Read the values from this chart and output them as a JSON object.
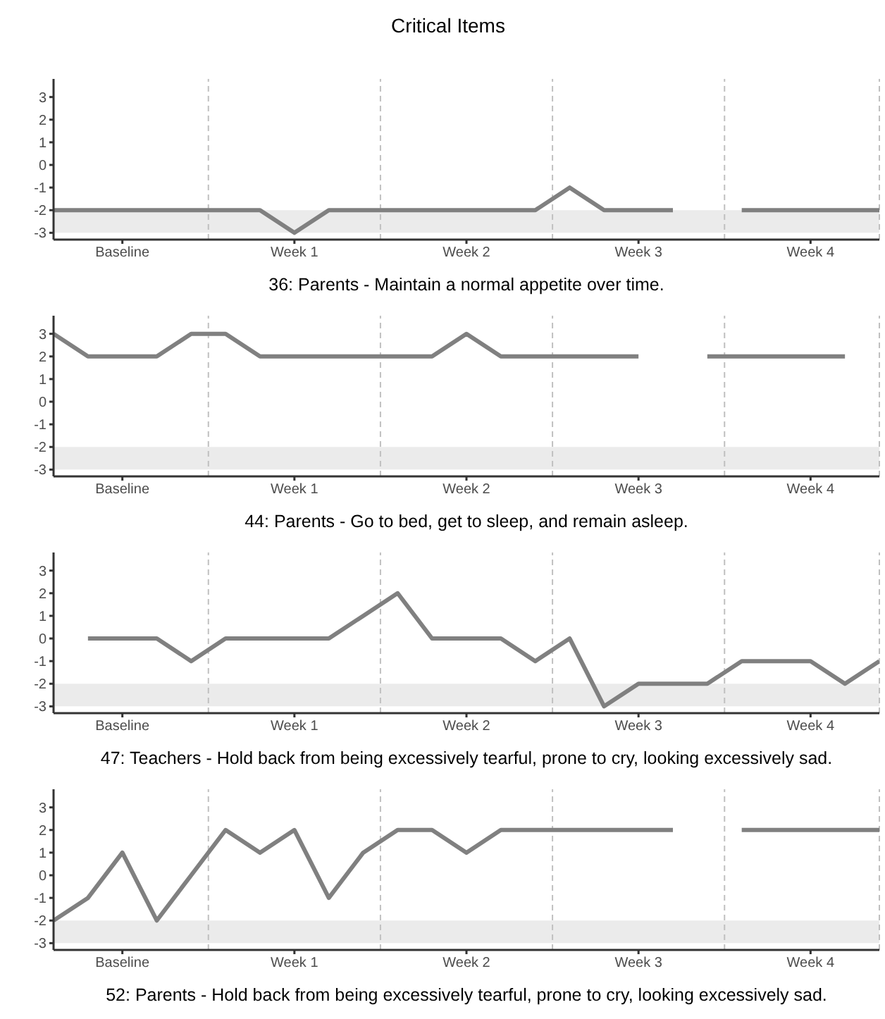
{
  "chart_data": [
    {
      "type": "line",
      "title": "Critical Items",
      "xlabel": "36: Parents - Maintain a normal appetite over time.",
      "categories": [
        null,
        null,
        "Baseline",
        null,
        null,
        null,
        null,
        "Week 1",
        null,
        null,
        null,
        null,
        "Week 2",
        null,
        null,
        null,
        null,
        "Week 3",
        null,
        null,
        null,
        null,
        "Week 4",
        null,
        null
      ],
      "series": [
        {
          "color": "#808080",
          "values": [
            -2,
            -2,
            -2,
            -2,
            -2,
            -2,
            -2,
            -3,
            -2,
            -2,
            -2,
            -2,
            -2,
            -2,
            -2,
            -1,
            -2,
            -2,
            -2,
            null,
            -2,
            -2,
            -2,
            -2,
            -2
          ]
        }
      ],
      "ylim": [
        -3.3,
        3.8
      ],
      "yticks": [
        -3,
        -2,
        -1,
        0,
        1,
        2,
        3
      ],
      "grid": false,
      "legend": false,
      "marker": "none",
      "line_style": "solid",
      "bands": [
        {
          "axis": "y",
          "from": -3,
          "to": -2,
          "color": "#ebebeb"
        }
      ]
    },
    {
      "type": "line",
      "xlabel": "44: Parents - Go to bed, get to sleep, and remain asleep.",
      "categories": [
        null,
        null,
        "Baseline",
        null,
        null,
        null,
        null,
        "Week 1",
        null,
        null,
        null,
        null,
        "Week 2",
        null,
        null,
        null,
        null,
        "Week 3",
        null,
        null,
        null,
        null,
        "Week 4",
        null,
        null
      ],
      "series": [
        {
          "color": "#808080",
          "values": [
            3,
            2,
            2,
            2,
            3,
            3,
            2,
            2,
            2,
            2,
            2,
            2,
            3,
            2,
            2,
            2,
            2,
            2,
            null,
            2,
            2,
            2,
            2,
            2,
            null
          ]
        }
      ],
      "ylim": [
        -3.3,
        3.8
      ],
      "yticks": [
        -3,
        -2,
        -1,
        0,
        1,
        2,
        3
      ],
      "grid": false,
      "legend": false,
      "marker": "none",
      "line_style": "solid",
      "bands": [
        {
          "axis": "y",
          "from": -3,
          "to": -2,
          "color": "#ebebeb"
        }
      ]
    },
    {
      "type": "line",
      "xlabel": "47: Teachers - Hold back from being excessively tearful, prone to cry, looking excessively sad.",
      "categories": [
        null,
        null,
        "Baseline",
        null,
        null,
        null,
        null,
        "Week 1",
        null,
        null,
        null,
        null,
        "Week 2",
        null,
        null,
        null,
        null,
        "Week 3",
        null,
        null,
        null,
        null,
        "Week 4",
        null,
        null
      ],
      "series": [
        {
          "color": "#808080",
          "values": [
            null,
            0,
            0,
            0,
            -1,
            0,
            0,
            0,
            0,
            1,
            2,
            0,
            0,
            0,
            -1,
            0,
            -3,
            -2,
            -2,
            -2,
            -1,
            -1,
            -1,
            -2,
            -1
          ]
        }
      ],
      "ylim": [
        -3.3,
        3.8
      ],
      "yticks": [
        -3,
        -2,
        -1,
        0,
        1,
        2,
        3
      ],
      "grid": false,
      "legend": false,
      "marker": "none",
      "line_style": "solid",
      "bands": [
        {
          "axis": "y",
          "from": -3,
          "to": -2,
          "color": "#ebebeb"
        }
      ]
    },
    {
      "type": "line",
      "xlabel": "52: Parents - Hold back from being excessively tearful, prone to cry, looking excessively sad.",
      "categories": [
        null,
        null,
        "Baseline",
        null,
        null,
        null,
        null,
        "Week 1",
        null,
        null,
        null,
        null,
        "Week 2",
        null,
        null,
        null,
        null,
        "Week 3",
        null,
        null,
        null,
        null,
        "Week 4",
        null,
        null
      ],
      "series": [
        {
          "color": "#808080",
          "values": [
            -2,
            -1,
            1,
            -2,
            0,
            2,
            1,
            2,
            -1,
            1,
            2,
            2,
            1,
            2,
            2,
            2,
            2,
            2,
            2,
            null,
            2,
            2,
            2,
            2,
            2
          ]
        }
      ],
      "ylim": [
        -3.3,
        3.8
      ],
      "yticks": [
        -3,
        -2,
        -1,
        0,
        1,
        2,
        3
      ],
      "grid": false,
      "legend": false,
      "marker": "none",
      "line_style": "solid",
      "bands": [
        {
          "axis": "y",
          "from": -3,
          "to": -2,
          "color": "#ebebeb"
        }
      ]
    }
  ]
}
